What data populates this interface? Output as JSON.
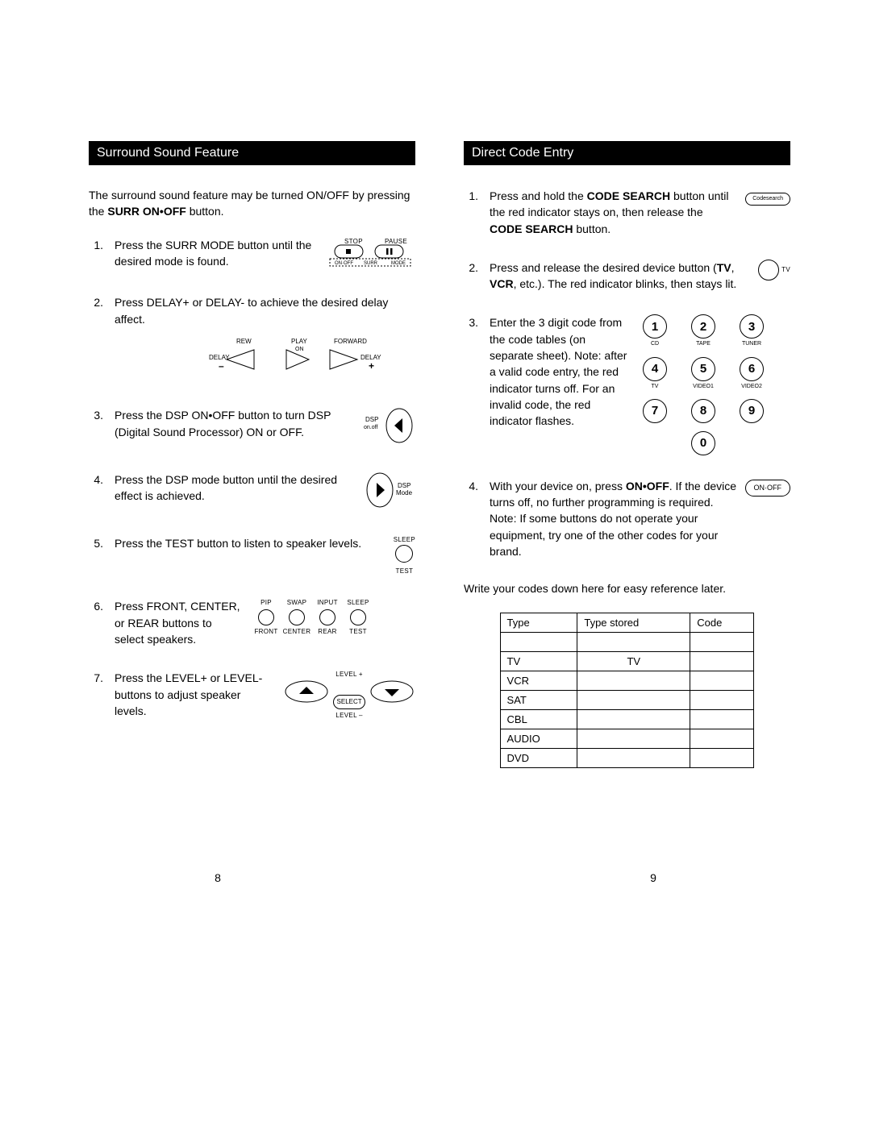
{
  "left": {
    "header": "Surround Sound Feature",
    "intro_a": "The surround sound feature may be turned ON/OFF by pressing the ",
    "intro_b": "SURR ON•OFF",
    "intro_c": " button.",
    "steps": {
      "s1": "Press the SURR MODE button until the desired mode is found.",
      "s2": "Press DELAY+ or DELAY- to achieve the desired delay affect.",
      "s3": "Press the DSP ON•OFF button to turn DSP (Digital Sound Processor) ON or OFF.",
      "s4": "Press the DSP mode button until the desired effect is achieved.",
      "s5": "Press the TEST button to listen to speaker levels.",
      "s6": "Press FRONT, CENTER, or REAR buttons to select speakers.",
      "s7": "Press the LEVEL+ or LEVEL- buttons to adjust speaker levels."
    },
    "figs": {
      "f1_stop": "STOP",
      "f1_pause": "PAUSE",
      "f1_onoff": "ON·OFF",
      "f1_surr": "SURR",
      "f1_mode": "MODE",
      "f2_rew": "REW",
      "f2_play": "PLAY",
      "f2_on": "ON",
      "f2_fwd": "FORWARD",
      "f2_delay_l": "DELAY",
      "f2_minus": "–",
      "f2_delay_r": "DELAY",
      "f2_plus": "+",
      "f3_dsp": "DSP",
      "f3_onoff": "on.off",
      "f4_dsp": "DSP",
      "f4_mode": "Mode",
      "f5_sleep": "SLEEP",
      "f5_test": "TEST",
      "f6_labels": [
        "PIP",
        "SWAP",
        "INPUT",
        "SLEEP",
        "FRONT",
        "CENTER",
        "REAR",
        "TEST"
      ],
      "f7_level_up": "LEVEL +",
      "f7_select": "SELECT",
      "f7_level_dn": "LEVEL –"
    }
  },
  "right": {
    "header": "Direct Code Entry",
    "s1": {
      "a": "Press and hold the ",
      "b": "CODE SEARCH",
      "c": " button until the red indicator stays on, then release the ",
      "d": "CODE SEARCH",
      "e": " button."
    },
    "s2": {
      "a": "Press and release the desired device button (",
      "b": "TV",
      "c": ", ",
      "d": "VCR",
      "e": ", etc.). The red indicator blinks, then stays lit."
    },
    "s3": "Enter the 3 digit code from the code tables (on separate sheet). Note: after a valid code entry, the red indicator turns off.  For an invalid code, the red indicator flashes.",
    "s4": {
      "a": "With your device on, press ",
      "b": "ON•OFF",
      "c": ". If the device turns off, no further programming is required. Note: If some buttons do not operate your equipment, try one of the other codes for your brand."
    },
    "write_codes": "Write your codes down here for easy reference later.",
    "figs": {
      "codesearch_label": "Codesearch",
      "tv_label": "TV",
      "onoff_label": "ON·OFF",
      "keypad": {
        "digits": [
          "1",
          "2",
          "3",
          "4",
          "5",
          "6",
          "7",
          "8",
          "9",
          "0"
        ],
        "subs": [
          "CD",
          "TAPE",
          "TUNER",
          "TV",
          "VIDEO1",
          "VIDEO2",
          "",
          "",
          "",
          ""
        ]
      }
    },
    "table": {
      "head": [
        "Type",
        "Type stored",
        "Code"
      ],
      "rows": [
        "",
        "TV",
        "VCR",
        "SAT",
        "CBL",
        "AUDIO",
        "DVD"
      ],
      "stored": {
        "TV": "TV"
      }
    }
  },
  "page_left": "8",
  "page_right": "9",
  "colors": {
    "header_bg": "#000000",
    "header_fg": "#ffffff",
    "border": "#000000"
  }
}
